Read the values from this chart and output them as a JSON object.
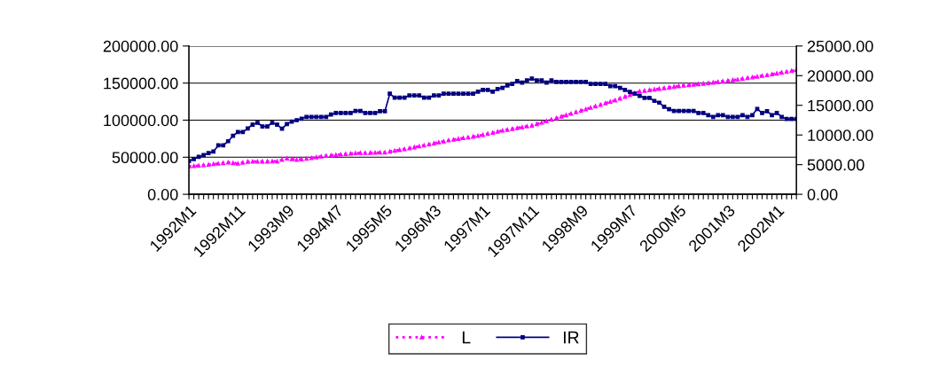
{
  "chart_data": {
    "type": "line",
    "categories": [
      "1992M1",
      null,
      null,
      null,
      null,
      null,
      null,
      null,
      null,
      null,
      "1992M11",
      null,
      null,
      null,
      null,
      null,
      null,
      null,
      null,
      null,
      "1993M9",
      null,
      null,
      null,
      null,
      null,
      null,
      null,
      null,
      null,
      "1994M7",
      null,
      null,
      null,
      null,
      null,
      null,
      null,
      null,
      null,
      "1995M5",
      null,
      null,
      null,
      null,
      null,
      null,
      null,
      null,
      null,
      "1996M3",
      null,
      null,
      null,
      null,
      null,
      null,
      null,
      null,
      null,
      "1997M1",
      null,
      null,
      null,
      null,
      null,
      null,
      null,
      null,
      null,
      "1997M11",
      null,
      null,
      null,
      null,
      null,
      null,
      null,
      null,
      null,
      "1998M9",
      null,
      null,
      null,
      null,
      null,
      null,
      null,
      null,
      null,
      "1999M7",
      null,
      null,
      null,
      null,
      null,
      null,
      null,
      null,
      null,
      "2000M5",
      null,
      null,
      null,
      null,
      null,
      null,
      null,
      null,
      null,
      "2001M3",
      null,
      null,
      null,
      null,
      null,
      null,
      null,
      null,
      null,
      "2002M1",
      null,
      null,
      null,
      null
    ],
    "series": [
      {
        "name": "L",
        "color": "#ff00ff",
        "marker": "triangle",
        "line_style": "dotted",
        "values": [
          37600,
          38200,
          38800,
          39400,
          40000,
          40800,
          41500,
          42200,
          43000,
          42200,
          41500,
          42800,
          44000,
          44100,
          44200,
          44300,
          44300,
          44400,
          44500,
          46500,
          48500,
          47500,
          46500,
          47200,
          48000,
          49000,
          50000,
          51000,
          52000,
          52600,
          53200,
          53800,
          54400,
          55000,
          55600,
          55800,
          55900,
          56000,
          56200,
          56400,
          56500,
          57600,
          58800,
          59900,
          61000,
          62200,
          63500,
          64800,
          66000,
          67400,
          68700,
          70100,
          71400,
          72800,
          73800,
          74800,
          75800,
          76800,
          77800,
          78800,
          80200,
          81700,
          83100,
          84600,
          86000,
          87100,
          88300,
          89400,
          90500,
          91700,
          92800,
          94800,
          96800,
          98800,
          100800,
          102800,
          104800,
          106800,
          108800,
          110800,
          112800,
          114800,
          116800,
          118800,
          120800,
          122800,
          124800,
          126800,
          129200,
          131600,
          134000,
          136400,
          138800,
          139700,
          140600,
          141500,
          142400,
          143300,
          144200,
          145100,
          146000,
          146700,
          147300,
          148000,
          148700,
          149300,
          150000,
          150800,
          151600,
          152400,
          153200,
          154000,
          154800,
          155800,
          156800,
          157800,
          158800,
          159800,
          160800,
          161900,
          163000,
          164200,
          165300,
          166400,
          167600
        ]
      },
      {
        "name": "IR",
        "color": "#000080",
        "marker": "square",
        "line_style": "solid",
        "axis": "y2",
        "values": [
          5600,
          5950,
          6300,
          6600,
          6950,
          7200,
          8250,
          8250,
          8950,
          9850,
          10500,
          10500,
          11100,
          11750,
          12050,
          11450,
          11450,
          12050,
          11750,
          11050,
          11850,
          12250,
          12500,
          12750,
          13050,
          13050,
          13050,
          13050,
          13050,
          13450,
          13700,
          13700,
          13700,
          13700,
          14050,
          14050,
          13700,
          13700,
          13700,
          14000,
          14000,
          16950,
          16300,
          16300,
          16300,
          16650,
          16650,
          16650,
          16300,
          16300,
          16650,
          16650,
          16950,
          16950,
          16950,
          16950,
          16950,
          16950,
          16950,
          17300,
          17600,
          17600,
          17300,
          17750,
          17950,
          18350,
          18600,
          19100,
          18850,
          19200,
          19500,
          19200,
          19200,
          18850,
          19200,
          18950,
          18950,
          18950,
          18950,
          18950,
          18950,
          18950,
          18600,
          18600,
          18600,
          18600,
          18250,
          18250,
          17950,
          17600,
          17250,
          16950,
          16600,
          16250,
          16250,
          15750,
          15450,
          14750,
          14350,
          14050,
          14050,
          14050,
          14050,
          14050,
          13700,
          13700,
          13350,
          13050,
          13350,
          13350,
          13050,
          13050,
          13050,
          13350,
          13050,
          13350,
          14400,
          13700,
          14000,
          13350,
          13700,
          13050,
          12700,
          12700,
          12700
        ]
      }
    ],
    "ylim": [
      0,
      200000
    ],
    "yticks": [
      {
        "value": 0,
        "label": "0.00"
      },
      {
        "value": 50000,
        "label": "50000.00"
      },
      {
        "value": 100000,
        "label": "100000.00"
      },
      {
        "value": 150000,
        "label": "150000.00"
      },
      {
        "value": 200000,
        "label": "200000.00"
      }
    ],
    "y2lim": [
      0,
      25000
    ],
    "y2ticks": [
      {
        "value": 0,
        "label": "0.00"
      },
      {
        "value": 5000,
        "label": "5000.00"
      },
      {
        "value": 10000,
        "label": "10000.00"
      },
      {
        "value": 15000,
        "label": "15000.00"
      },
      {
        "value": 20000,
        "label": "20000.00"
      },
      {
        "value": 25000,
        "label": "25000.00"
      }
    ],
    "grid": "y",
    "legend": "bottom"
  }
}
